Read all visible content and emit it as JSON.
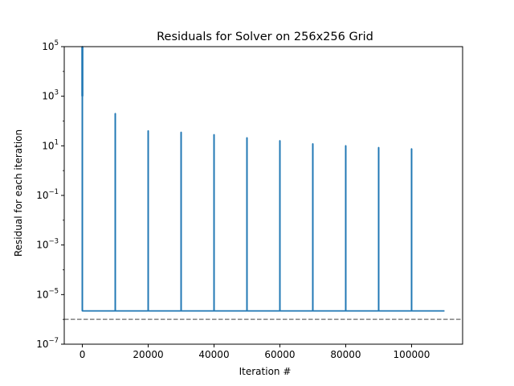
{
  "chart_data": {
    "type": "line",
    "title": "Residuals for Solver on 256x256 Grid",
    "xlabel": "Iteration #",
    "ylabel": "Residual for each iteration",
    "yscale": "log",
    "xlim": [
      -5500,
      115500
    ],
    "ylim": [
      1e-07,
      100000.0
    ],
    "grid": false,
    "x_ticks": [
      0,
      20000,
      40000,
      60000,
      80000,
      100000
    ],
    "x_tick_labels": [
      "0",
      "20000",
      "40000",
      "60000",
      "80000",
      "100000"
    ],
    "y_ticks": [
      1e-07,
      1e-05,
      0.001,
      0.1,
      10.0,
      1000.0,
      100000.0
    ],
    "y_tick_labels": [
      {
        "base": "10",
        "exp": "−7"
      },
      {
        "base": "10",
        "exp": "−5"
      },
      {
        "base": "10",
        "exp": "−3"
      },
      {
        "base": "10",
        "exp": "−1"
      },
      {
        "base": "10",
        "exp": "1"
      },
      {
        "base": "10",
        "exp": "3"
      },
      {
        "base": "10",
        "exp": "5"
      }
    ],
    "series": [
      {
        "color": "#1f77b4",
        "baseline_value": 2.2e-06,
        "x_end": 110000,
        "spikes": [
          {
            "x": 0,
            "peak": 100000
          },
          {
            "x": 10000,
            "peak": 200
          },
          {
            "x": 20000,
            "peak": 40
          },
          {
            "x": 30000,
            "peak": 35
          },
          {
            "x": 40000,
            "peak": 28
          },
          {
            "x": 50000,
            "peak": 21
          },
          {
            "x": 60000,
            "peak": 16
          },
          {
            "x": 70000,
            "peak": 12
          },
          {
            "x": 80000,
            "peak": 10
          },
          {
            "x": 90000,
            "peak": 8.5
          },
          {
            "x": 100000,
            "peak": 7.5
          }
        ]
      }
    ],
    "reference_line": {
      "y": 1e-06,
      "style": "dashed",
      "color": "#808080"
    }
  }
}
